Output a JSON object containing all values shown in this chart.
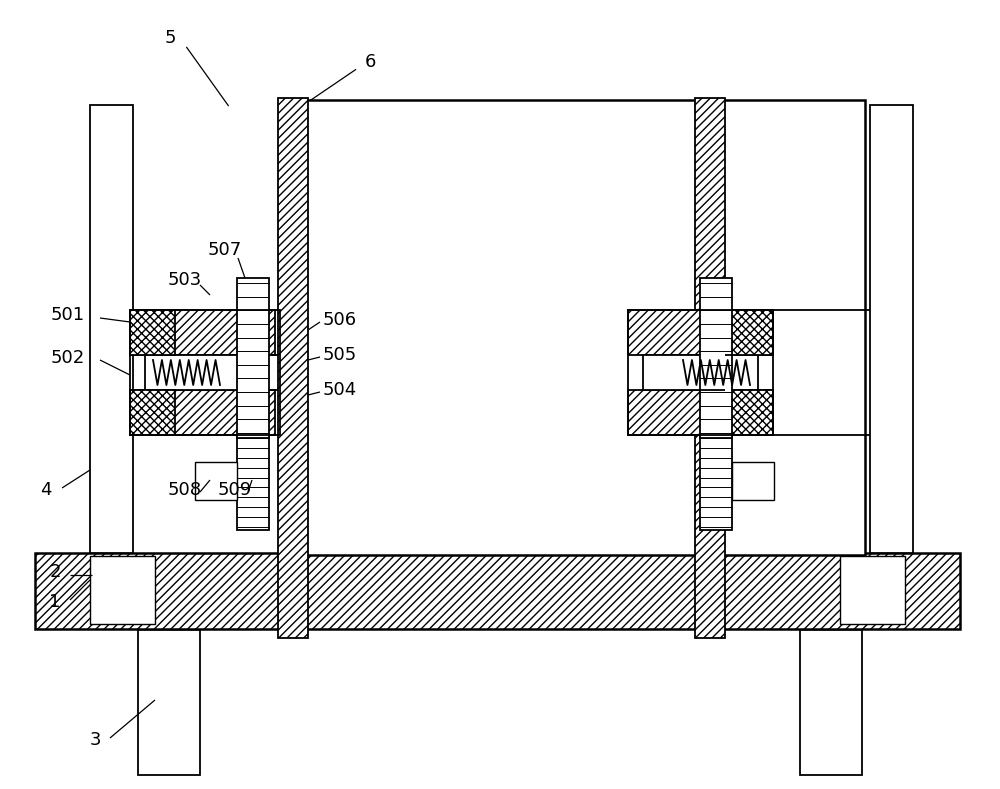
{
  "bg": "#ffffff",
  "lc": "#000000",
  "fig_w": 10.0,
  "fig_h": 7.89,
  "dpi": 100,
  "lw_main": 1.8,
  "lw_med": 1.3,
  "lw_thin": 1.0,
  "label_fs": 13
}
